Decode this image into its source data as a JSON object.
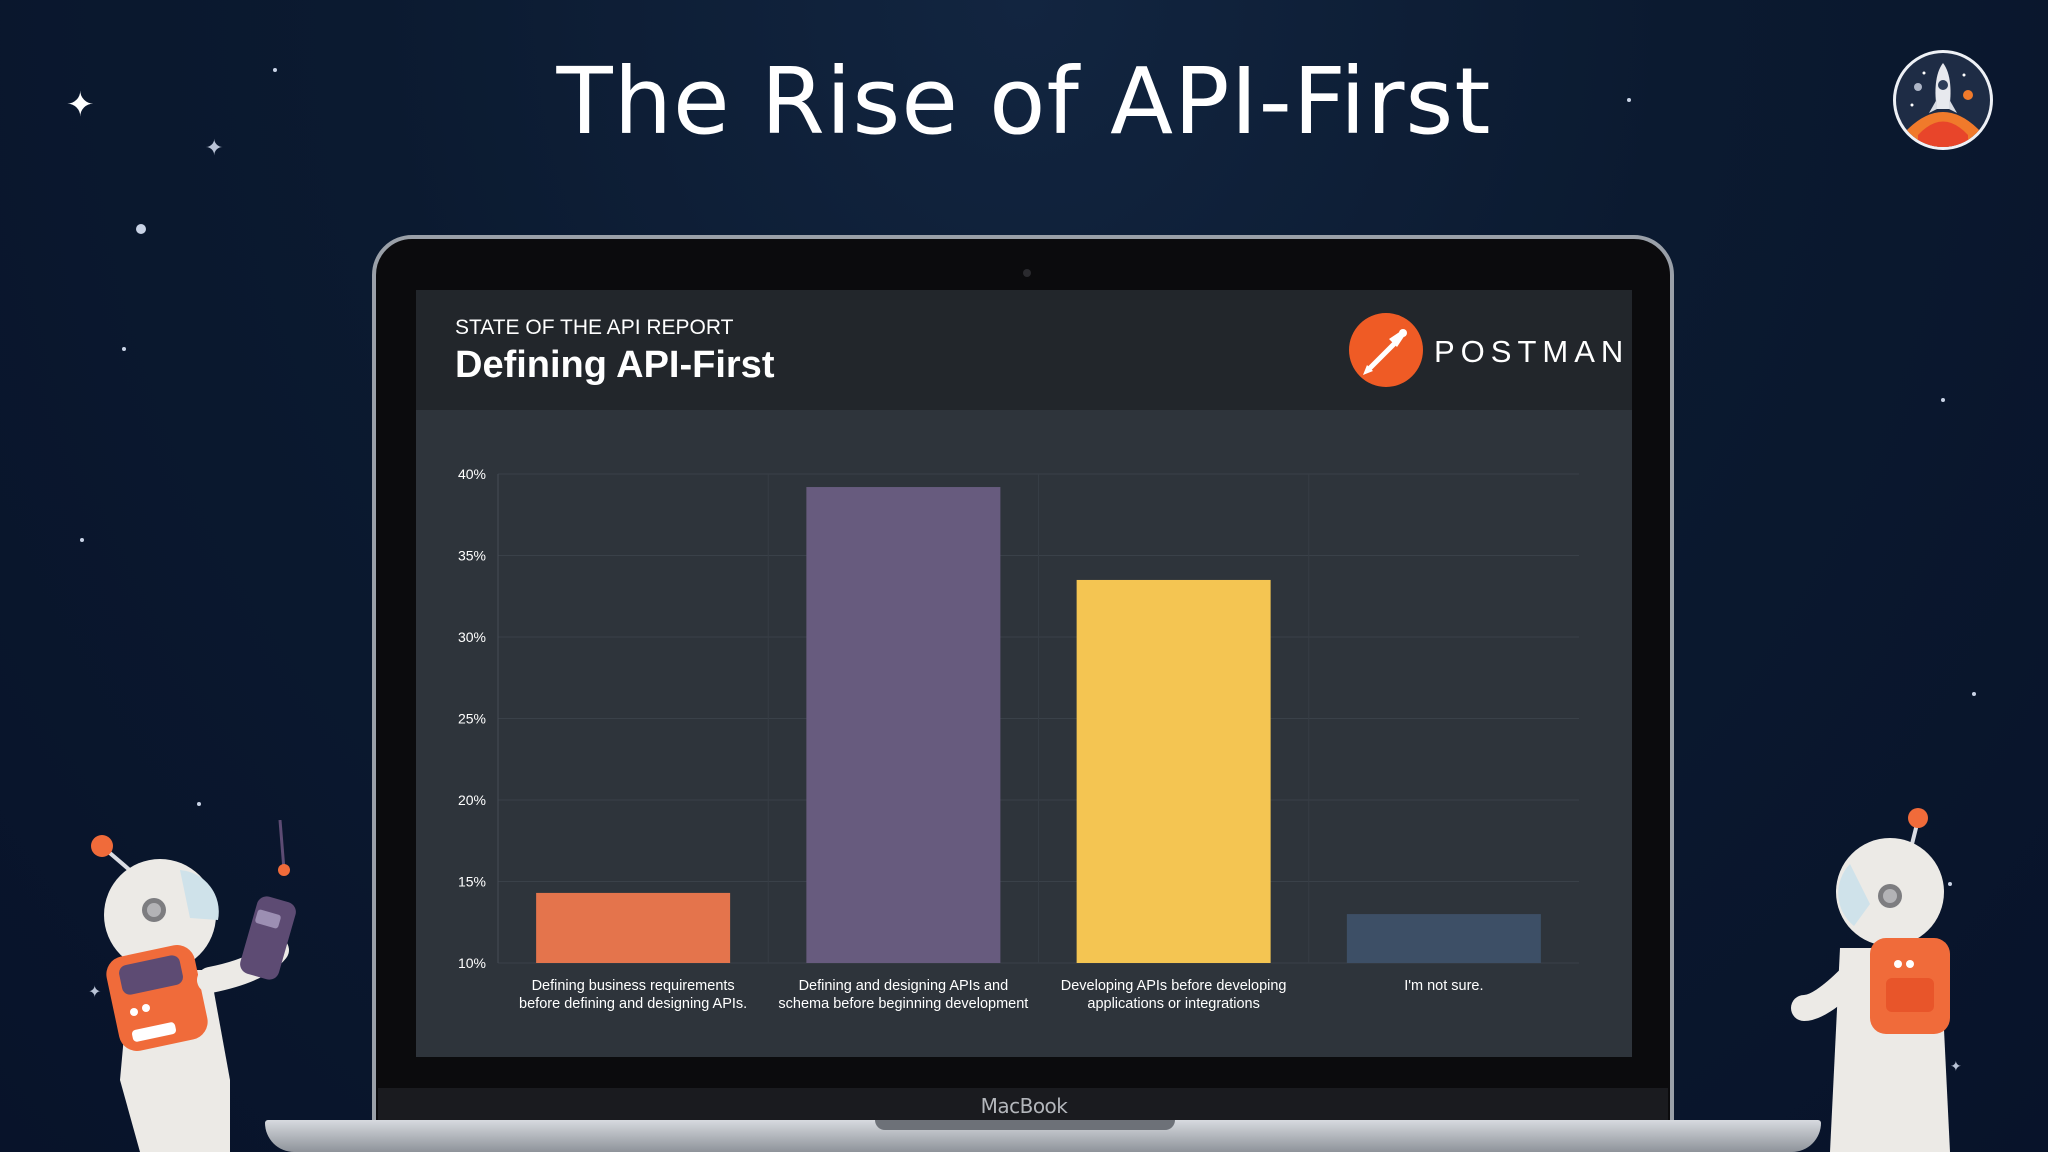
{
  "slide": {
    "title": "The Rise of API-First"
  },
  "device": {
    "brand": "MacBook"
  },
  "report": {
    "eyebrow": "STATE OF THE API REPORT",
    "title": "Defining API-First",
    "brand": "POSTMAN"
  },
  "colors": {
    "background": "#0b1a30",
    "screen": "#2e343b",
    "header": "#22262b",
    "postman": "#ef5b25"
  },
  "chart_data": {
    "type": "bar",
    "categories": [
      [
        "Defining business requirements",
        "before defining and designing APIs."
      ],
      [
        "Defining and designing APIs and",
        "schema before beginning development"
      ],
      [
        "Developing APIs before developing",
        "applications or integrations"
      ],
      [
        "I'm not sure."
      ]
    ],
    "values": [
      14.3,
      39.2,
      33.5,
      13.0
    ],
    "colors": [
      "#e4744c",
      "#675b7e",
      "#f4c552",
      "#3d4f66"
    ],
    "ylim": [
      10,
      40
    ],
    "yticks": [
      10,
      15,
      20,
      25,
      30,
      35,
      40
    ],
    "ytick_labels": [
      "10%",
      "15%",
      "20%",
      "25%",
      "30%",
      "35%",
      "40%"
    ],
    "grid": true,
    "legend": "none",
    "title": "",
    "xlabel": "",
    "ylabel": ""
  }
}
